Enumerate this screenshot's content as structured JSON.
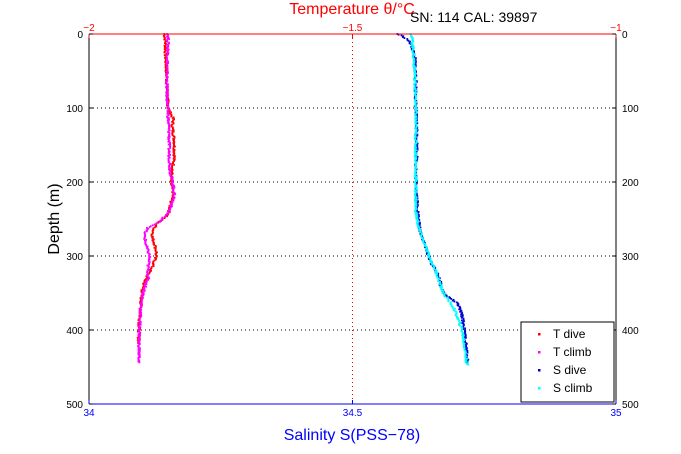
{
  "chart_data": {
    "type": "scatter",
    "title": "Temperature θ/°C",
    "subtitle": "SN: 114  CAL: 39897",
    "xlabel": "Salinity S(PSS−78)",
    "ylabel": "Depth (m)",
    "x_bottom": {
      "range": [
        34,
        35
      ],
      "ticks": [
        "34",
        "34.5",
        "35"
      ],
      "color": "#0000ff"
    },
    "x_top": {
      "range": [
        -2,
        -1
      ],
      "ticks": [
        "−2",
        "−1.5",
        "−1"
      ],
      "color": "#ff0000"
    },
    "y": {
      "range": [
        0,
        500
      ],
      "reversed": true,
      "ticks": [
        "0",
        "100",
        "200",
        "300",
        "400",
        "500"
      ]
    },
    "grid": true,
    "legend_position": "bottom-right",
    "colors": {
      "t_dive": "#ff0000",
      "t_climb": "#ff00ff",
      "s_dive": "#0000cc",
      "s_climb": "#00ffff",
      "vgrid": "#ff0000",
      "hgrid": "#000000"
    },
    "series": [
      {
        "name": "T dive",
        "axis": "top",
        "color": "#ff0000",
        "points": [
          [
            -1.857,
            0
          ],
          [
            -1.855,
            10
          ],
          [
            -1.855,
            25
          ],
          [
            -1.853,
            50
          ],
          [
            -1.852,
            75
          ],
          [
            -1.85,
            100
          ],
          [
            -1.84,
            115
          ],
          [
            -1.842,
            125
          ],
          [
            -1.838,
            145
          ],
          [
            -1.838,
            165
          ],
          [
            -1.842,
            185
          ],
          [
            -1.845,
            200
          ],
          [
            -1.84,
            215
          ],
          [
            -1.845,
            230
          ],
          [
            -1.85,
            245
          ],
          [
            -1.87,
            255
          ],
          [
            -1.878,
            265
          ],
          [
            -1.88,
            275
          ],
          [
            -1.875,
            285
          ],
          [
            -1.872,
            295
          ],
          [
            -1.875,
            305
          ],
          [
            -1.88,
            315
          ],
          [
            -1.888,
            325
          ],
          [
            -1.895,
            335
          ],
          [
            -1.9,
            350
          ],
          [
            -1.902,
            370
          ],
          [
            -1.905,
            395
          ],
          [
            -1.906,
            420
          ]
        ]
      },
      {
        "name": "T climb",
        "axis": "top",
        "color": "#ff00ff",
        "points": [
          [
            -1.85,
            0
          ],
          [
            -1.85,
            20
          ],
          [
            -1.852,
            50
          ],
          [
            -1.852,
            80
          ],
          [
            -1.85,
            110
          ],
          [
            -1.848,
            135
          ],
          [
            -1.848,
            160
          ],
          [
            -1.846,
            185
          ],
          [
            -1.84,
            205
          ],
          [
            -1.838,
            220
          ],
          [
            -1.848,
            240
          ],
          [
            -1.868,
            255
          ],
          [
            -1.888,
            262
          ],
          [
            -1.895,
            270
          ],
          [
            -1.892,
            285
          ],
          [
            -1.885,
            300
          ],
          [
            -1.888,
            315
          ],
          [
            -1.888,
            330
          ],
          [
            -1.895,
            345
          ],
          [
            -1.9,
            360
          ],
          [
            -1.902,
            375
          ],
          [
            -1.904,
            395
          ],
          [
            -1.905,
            420
          ],
          [
            -1.905,
            440
          ],
          [
            -1.905,
            445
          ]
        ]
      },
      {
        "name": "S dive",
        "axis": "bottom",
        "color": "#0000cc",
        "points": [
          [
            34.585,
            0
          ],
          [
            34.595,
            3
          ],
          [
            34.605,
            8
          ],
          [
            34.612,
            15
          ],
          [
            34.618,
            30
          ],
          [
            34.62,
            60
          ],
          [
            34.62,
            100
          ],
          [
            34.622,
            130
          ],
          [
            34.622,
            160
          ],
          [
            34.62,
            190
          ],
          [
            34.622,
            220
          ],
          [
            34.625,
            250
          ],
          [
            34.628,
            265
          ],
          [
            34.635,
            280
          ],
          [
            34.642,
            295
          ],
          [
            34.65,
            310
          ],
          [
            34.658,
            320
          ],
          [
            34.665,
            330
          ],
          [
            34.668,
            342
          ],
          [
            34.675,
            352
          ],
          [
            34.688,
            358
          ],
          [
            34.7,
            365
          ],
          [
            34.708,
            380
          ],
          [
            34.712,
            400
          ],
          [
            34.715,
            420
          ],
          [
            34.718,
            440
          ],
          [
            34.72,
            445
          ]
        ]
      },
      {
        "name": "S climb",
        "axis": "bottom",
        "color": "#00ffff",
        "points": [
          [
            34.612,
            0
          ],
          [
            34.615,
            20
          ],
          [
            34.618,
            50
          ],
          [
            34.62,
            100
          ],
          [
            34.62,
            150
          ],
          [
            34.62,
            200
          ],
          [
            34.62,
            240
          ],
          [
            34.625,
            260
          ],
          [
            34.632,
            275
          ],
          [
            34.64,
            290
          ],
          [
            34.648,
            305
          ],
          [
            34.658,
            320
          ],
          [
            34.665,
            335
          ],
          [
            34.672,
            350
          ],
          [
            34.682,
            360
          ],
          [
            34.692,
            370
          ],
          [
            34.7,
            385
          ],
          [
            34.708,
            400
          ],
          [
            34.712,
            420
          ],
          [
            34.716,
            440
          ],
          [
            34.718,
            448
          ]
        ]
      }
    ]
  }
}
